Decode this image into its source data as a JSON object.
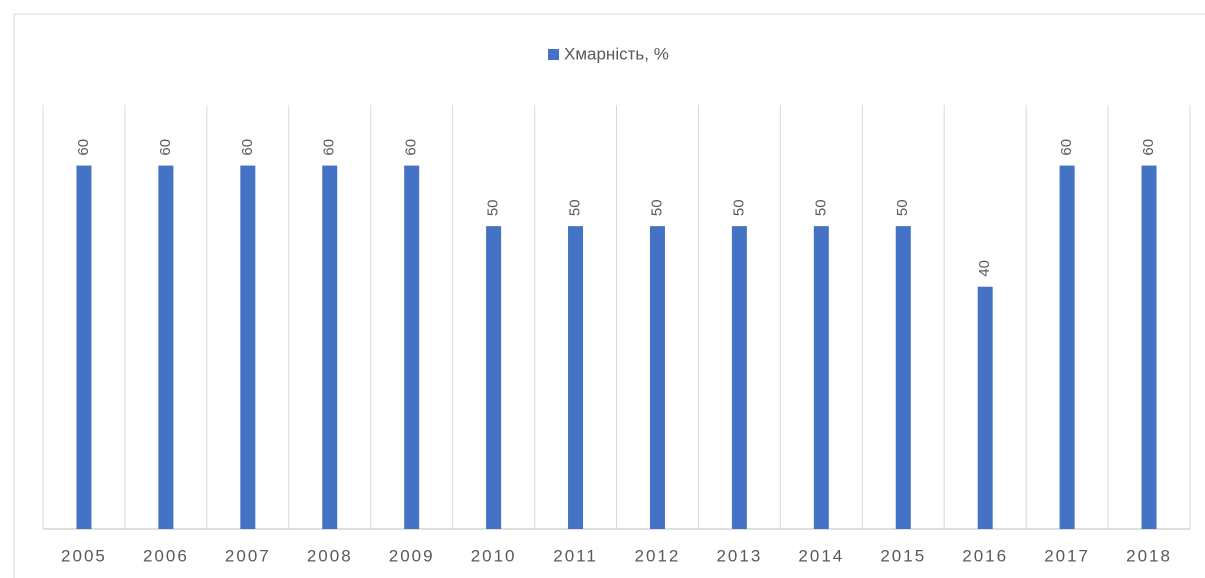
{
  "chart_data": {
    "type": "bar",
    "categories": [
      "2005",
      "2006",
      "2007",
      "2008",
      "2009",
      "2010",
      "2011",
      "2012",
      "2013",
      "2014",
      "2015",
      "2016",
      "2017",
      "2018"
    ],
    "series": [
      {
        "name": "Хмарність, %",
        "color": "#4472c4",
        "values": [
          60,
          60,
          60,
          60,
          60,
          50,
          50,
          50,
          50,
          50,
          50,
          40,
          60,
          60
        ]
      }
    ],
    "ylim": [
      0,
      70
    ],
    "legend": "top"
  }
}
